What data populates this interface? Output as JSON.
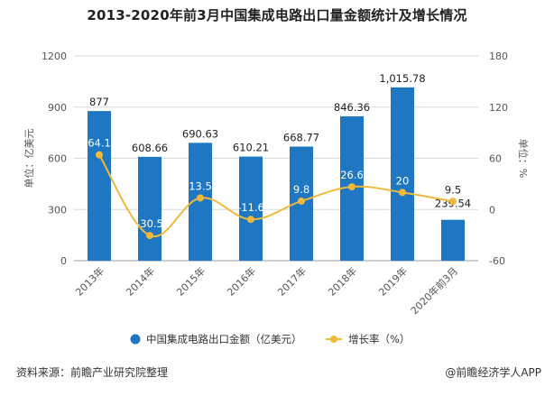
{
  "title": "2013-2020年前3月中国集成电路出口量金额统计及增长情况",
  "footer": {
    "source": "资料来源：前瞻产业研究院整理",
    "brand": "@前瞻经济学人APP"
  },
  "colors": {
    "bar": "#1f77c2",
    "line": "#f0b93a",
    "grid": "#d9d9d9",
    "axis_text": "#555555"
  },
  "chart_data": {
    "type": "bar+line",
    "title": "2013-2020年前3月中国集成电路出口量金额统计及增长情况",
    "categories": [
      "2013年",
      "2014年",
      "2015年",
      "2016年",
      "2017年",
      "2018年",
      "2019年",
      "2020年前3月"
    ],
    "series": [
      {
        "name": "中国集成电路出口金额（亿美元）",
        "type": "bar",
        "axis": "left",
        "values": [
          877,
          608.66,
          690.63,
          610.21,
          668.77,
          846.36,
          1015.78,
          239.54
        ],
        "labels": [
          "877",
          "608.66",
          "690.63",
          "610.21",
          "668.77",
          "846.36",
          "1,015.78",
          "239.54"
        ]
      },
      {
        "name": "增长率（%）",
        "type": "line",
        "axis": "right",
        "values": [
          64.1,
          -30.5,
          13.5,
          -11.6,
          9.8,
          26.6,
          20,
          9.5
        ],
        "labels": [
          "64.1",
          "-30.5",
          "13.5",
          "-11.6",
          "9.8",
          "26.6",
          "20",
          "9.5"
        ]
      }
    ],
    "ylabel_left": "单位：亿美元",
    "ylabel_right": "单位：%",
    "ylim_left": [
      0,
      1200
    ],
    "yticks_left": [
      0,
      300,
      600,
      900,
      1200
    ],
    "ylim_right": [
      -60,
      180
    ],
    "yticks_right": [
      -60,
      0,
      60,
      120,
      180
    ],
    "grid": true,
    "legend_position": "bottom"
  }
}
